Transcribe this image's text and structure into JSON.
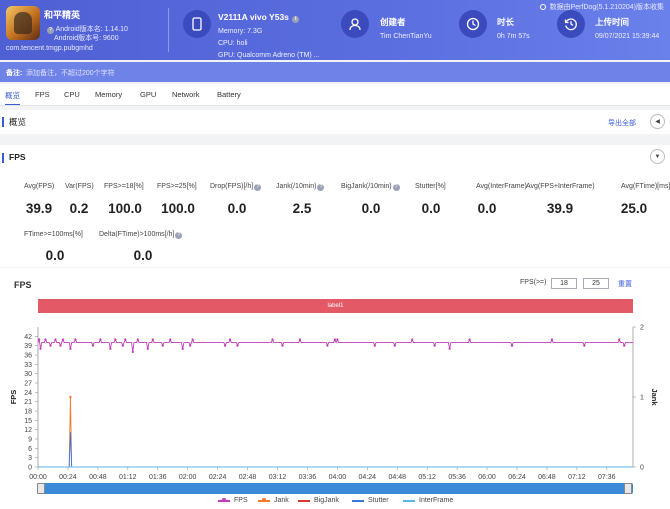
{
  "header": {
    "app_name": "和平精英",
    "android_version": "Android版本名: 1.14.10",
    "android_code": "Android版本号: 9600",
    "package": "com.tencent.tmgp.pubgmhd",
    "device_name": "V2111A vivo Y53s",
    "memory": "Memory: 7.3G",
    "cpu": "CPU: holi",
    "gpu": "GPU: Qualcomm Adreno (TM) ...",
    "creator_label": "创建者",
    "creator_value": "Tim ChenTianYu",
    "duration_label": "时长",
    "duration_value": "0h 7m 57s",
    "upload_label": "上传时间",
    "upload_value": "09/07/2021 15:39:44",
    "perfdog_note": "数据由PerfDog(5.1.210204)版本收集"
  },
  "note": {
    "label": "备注:",
    "placeholder": "添加备注，不超过200个字符"
  },
  "tabs": [
    "概览",
    "FPS",
    "CPU",
    "Memory",
    "GPU",
    "Network",
    "Battery"
  ],
  "overview": {
    "title": "概览",
    "export": "导出全部"
  },
  "fps_section": {
    "title": "FPS",
    "metrics_row1": [
      {
        "label": "Avg(FPS)",
        "value": "39.9",
        "help": false
      },
      {
        "label": "Var(FPS)",
        "value": "0.2",
        "help": false
      },
      {
        "label": "FPS>=18[%]",
        "value": "100.0",
        "help": false
      },
      {
        "label": "FPS>=25[%]",
        "value": "100.0",
        "help": false
      },
      {
        "label": "Drop(FPS)[/h]",
        "value": "0.0",
        "help": true
      },
      {
        "label": "Jank(/10min)",
        "value": "2.5",
        "help": true
      },
      {
        "label": "BigJank(/10min)",
        "value": "0.0",
        "help": true
      },
      {
        "label": "Stutter[%]",
        "value": "0.0",
        "help": false
      },
      {
        "label": "Avg(InterFrame)",
        "value": "0.0",
        "help": false
      },
      {
        "label": "Avg(FPS+InterFrame)",
        "value": "39.9",
        "help": false
      },
      {
        "label": "Avg(FTime)[ms]",
        "value": "25.0",
        "help": false
      }
    ],
    "metrics_row2": [
      {
        "label": "FTime>=100ms[%]",
        "value": "0.0",
        "help": false
      },
      {
        "label": "Delta(FTime)>100ms[/h]",
        "value": "0.0",
        "help": true
      }
    ]
  },
  "chart_panel": {
    "title": "FPS",
    "threshold_label": "FPS(>=)",
    "threshold_a": "18",
    "threshold_b": "25",
    "reset": "重置",
    "label_bar": "label1"
  },
  "colors": {
    "fps": "#c23bb8",
    "jank": "#f07a2a",
    "bigjank": "#d93b2b",
    "stutter": "#3a78d8",
    "interframe": "#5ab8e8",
    "label_bar": "#e35a66",
    "accent": "#3a5bd9"
  },
  "chart_data": {
    "type": "line",
    "ylabel": "FPS",
    "y2label": "Jank",
    "ylim": [
      0,
      45
    ],
    "y2lim": [
      0,
      2
    ],
    "yticks": [
      0,
      3,
      6,
      9,
      12,
      15,
      18,
      21,
      24,
      27,
      30,
      33,
      36,
      39,
      42
    ],
    "y2ticks": [
      0,
      1,
      2
    ],
    "xlim": [
      0,
      477
    ],
    "x_tick_labels": [
      "00:00",
      "00:24",
      "00:48",
      "01:12",
      "01:36",
      "02:00",
      "02:24",
      "02:48",
      "03:12",
      "03:36",
      "04:00",
      "04:24",
      "04:48",
      "05:12",
      "05:36",
      "06:00",
      "06:24",
      "06:48",
      "07:12",
      "07:36"
    ],
    "x_tick_seconds": [
      0,
      24,
      48,
      72,
      96,
      120,
      144,
      168,
      192,
      216,
      240,
      264,
      288,
      312,
      336,
      360,
      384,
      408,
      432,
      456
    ],
    "series": [
      {
        "name": "FPS",
        "base": 40,
        "dips": [
          [
            1,
            41
          ],
          [
            2,
            38
          ],
          [
            6,
            41
          ],
          [
            10,
            39
          ],
          [
            14,
            41
          ],
          [
            18,
            39
          ],
          [
            20,
            41
          ],
          [
            26,
            38
          ],
          [
            30,
            41
          ],
          [
            44,
            39
          ],
          [
            50,
            41
          ],
          [
            58,
            38
          ],
          [
            62,
            41
          ],
          [
            68,
            39
          ],
          [
            70,
            41
          ],
          [
            76,
            37
          ],
          [
            80,
            41
          ],
          [
            88,
            38
          ],
          [
            92,
            41
          ],
          [
            100,
            39
          ],
          [
            106,
            41
          ],
          [
            116,
            38
          ],
          [
            122,
            39
          ],
          [
            124,
            41
          ],
          [
            150,
            39
          ],
          [
            154,
            41
          ],
          [
            160,
            39
          ],
          [
            188,
            41
          ],
          [
            196,
            39
          ],
          [
            210,
            41
          ],
          [
            232,
            39
          ],
          [
            238,
            41
          ],
          [
            240,
            41
          ],
          [
            270,
            39
          ],
          [
            286,
            39
          ],
          [
            300,
            41
          ],
          [
            318,
            39
          ],
          [
            330,
            38
          ],
          [
            346,
            41
          ],
          [
            380,
            39
          ],
          [
            412,
            41
          ],
          [
            438,
            39
          ],
          [
            466,
            41
          ],
          [
            470,
            39
          ]
        ]
      },
      {
        "name": "Jank",
        "points": [
          [
            0,
            0
          ],
          [
            25,
            0
          ],
          [
            26,
            1
          ],
          [
            27,
            0
          ],
          [
            477,
            0
          ]
        ],
        "axis": "y2"
      },
      {
        "name": "BigJank",
        "points": [
          [
            0,
            0
          ],
          [
            477,
            0
          ]
        ],
        "axis": "y2"
      },
      {
        "name": "Stutter",
        "points": [
          [
            0,
            0
          ],
          [
            25,
            0
          ],
          [
            26,
            0.5
          ],
          [
            27,
            0
          ],
          [
            477,
            0
          ]
        ],
        "axis": "y2"
      },
      {
        "name": "InterFrame",
        "points": [
          [
            0,
            0
          ],
          [
            477,
            0
          ]
        ]
      }
    ],
    "legend": [
      "FPS",
      "Jank",
      "BigJank",
      "Stutter",
      "InterFrame"
    ],
    "legend_position": "bottom"
  }
}
